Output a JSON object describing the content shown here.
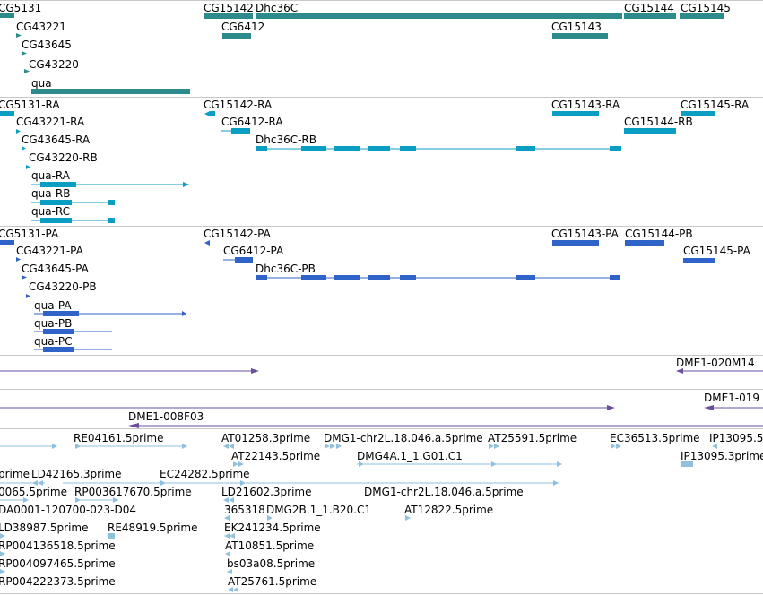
{
  "colors": {
    "gene": "#2e8b8b",
    "transcript": "#0a9ec2",
    "protein": "#2f63c8",
    "clone": "#6a4fa0",
    "est": "#8fc0e0",
    "separator": "#c8c8c8"
  },
  "genes": [
    {
      "label": "CG5131"
    },
    {
      "label": "CG43221"
    },
    {
      "label": "CG43645"
    },
    {
      "label": "CG43220"
    },
    {
      "label": "qua"
    },
    {
      "label": "CG15142"
    },
    {
      "label": "Dhc36C"
    },
    {
      "label": "CG6412"
    },
    {
      "label": "CG15143"
    },
    {
      "label": "CG15144"
    },
    {
      "label": "CG15145"
    }
  ],
  "transcripts": [
    {
      "label": "CG5131-RA"
    },
    {
      "label": "CG43221-RA"
    },
    {
      "label": "CG43645-RA"
    },
    {
      "label": "CG43220-RB"
    },
    {
      "label": "qua-RA"
    },
    {
      "label": "qua-RB"
    },
    {
      "label": "qua-RC"
    },
    {
      "label": "CG15142-RA"
    },
    {
      "label": "CG6412-RA"
    },
    {
      "label": "Dhc36C-RB"
    },
    {
      "label": "CG15143-RA"
    },
    {
      "label": "CG15145-RA"
    },
    {
      "label": "CG15144-RB"
    }
  ],
  "proteins": [
    {
      "label": "CG5131-PA"
    },
    {
      "label": "CG43221-PA"
    },
    {
      "label": "CG43645-PA"
    },
    {
      "label": "CG43220-PB"
    },
    {
      "label": "qua-PA"
    },
    {
      "label": "qua-PB"
    },
    {
      "label": "qua-PC"
    },
    {
      "label": "CG15142-PA"
    },
    {
      "label": "CG6412-PA"
    },
    {
      "label": "Dhc36C-PB"
    },
    {
      "label": "CG15143-PA"
    },
    {
      "label": "CG15144-PB"
    },
    {
      "label": "CG15145-PA"
    }
  ],
  "clones": [
    {
      "label": "DME1-020M14"
    },
    {
      "label": "DME1-019"
    },
    {
      "label": "DME1-008F03"
    }
  ],
  "ests": [
    {
      "label": "RE04161.5prime"
    },
    {
      "label": "AT01258.3prime"
    },
    {
      "label": "DMG1-chr2L.18.046.a.5prime"
    },
    {
      "label": "AT25591.5prime"
    },
    {
      "label": "EC36513.5prime"
    },
    {
      "label": "IP13095.5"
    },
    {
      "label": "AT22143.5prime"
    },
    {
      "label": "DMG4A.1_1.G01.C1"
    },
    {
      "label": "IP13095.3prime"
    },
    {
      "label": "prime"
    },
    {
      "label": "LD42165.3prime"
    },
    {
      "label": "EC24282.5prime"
    },
    {
      "label": "0065.5prime"
    },
    {
      "label": "RP003617670.5prime"
    },
    {
      "label": "LD21602.3prime"
    },
    {
      "label": "DMG1-chr2L.18.046.a.5prime"
    },
    {
      "label": "DA0001-120700-023-D04"
    },
    {
      "label": "365318"
    },
    {
      "label": "DMG2B.1_1.B20.C1"
    },
    {
      "label": "AT12822.5prime"
    },
    {
      "label": "LD38987.5prime"
    },
    {
      "label": "RE48919.5prime"
    },
    {
      "label": "EK241234.5prime"
    },
    {
      "label": "RP004136518.5prime"
    },
    {
      "label": "AT10851.5prime"
    },
    {
      "label": "RP004097465.5prime"
    },
    {
      "label": "bs03a08.5prime"
    },
    {
      "label": "RP004222373.5prime"
    },
    {
      "label": "AT25761.5prime"
    }
  ]
}
